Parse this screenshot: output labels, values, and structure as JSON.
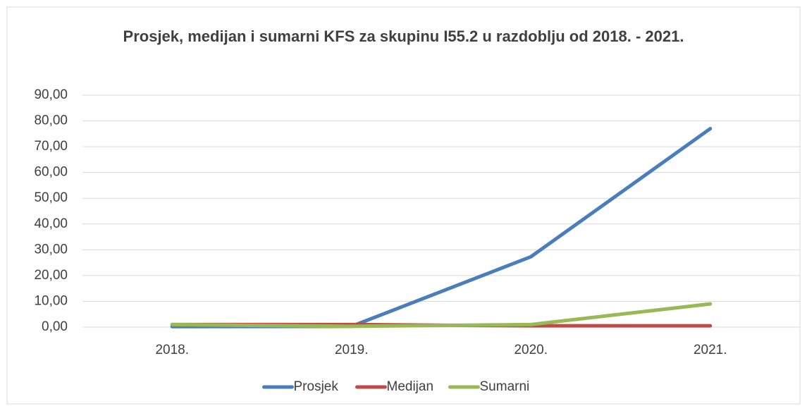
{
  "chart_data": {
    "type": "line",
    "title": "Prosjek, medijan i sumarni KFS za skupinu I55.2 u razdoblju od 2018. - 2021.",
    "categories": [
      "2018.",
      "2019.",
      "2020.",
      "2021."
    ],
    "series": [
      {
        "name": "Prosjek",
        "color": "#4a7ebb",
        "values": [
          0.2,
          0.3,
          27.3,
          77.0
        ]
      },
      {
        "name": "Medijan",
        "color": "#be4b48",
        "values": [
          1.0,
          1.0,
          0.5,
          0.5
        ]
      },
      {
        "name": "Sumarni",
        "color": "#98b954",
        "values": [
          1.0,
          0.3,
          1.0,
          9.0
        ]
      }
    ],
    "ylim": [
      0,
      90
    ],
    "yticks": [
      {
        "value": 0,
        "label": "0,00"
      },
      {
        "value": 10,
        "label": "10,00"
      },
      {
        "value": 20,
        "label": "20,00"
      },
      {
        "value": 30,
        "label": "30,00"
      },
      {
        "value": 40,
        "label": "40,00"
      },
      {
        "value": 50,
        "label": "50,00"
      },
      {
        "value": 60,
        "label": "60,00"
      },
      {
        "value": 70,
        "label": "70,00"
      },
      {
        "value": 80,
        "label": "80,00"
      },
      {
        "value": 90,
        "label": "90,00"
      }
    ],
    "grid": true,
    "legend": "bottom"
  }
}
